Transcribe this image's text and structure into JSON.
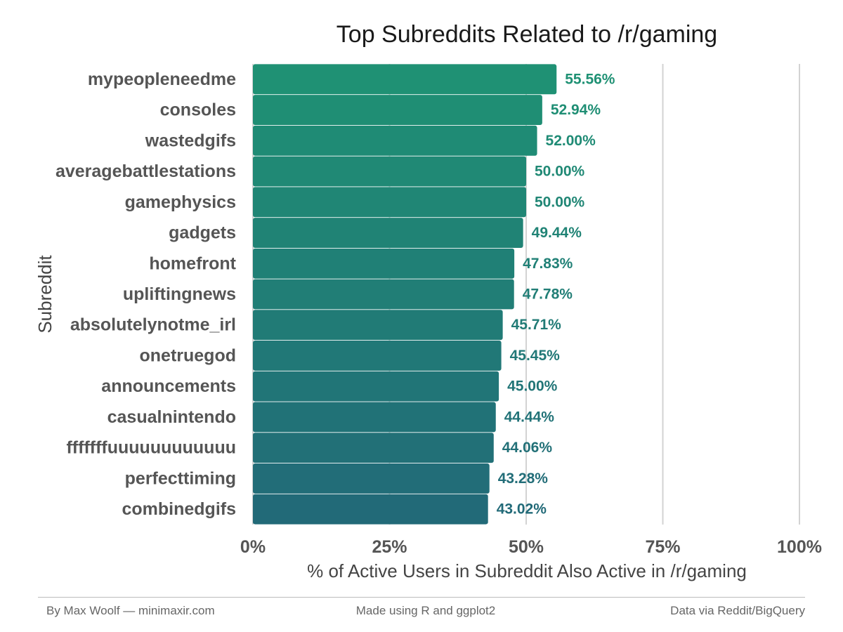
{
  "chart_data": {
    "type": "bar",
    "orientation": "horizontal",
    "title": "Top Subreddits Related to /r/gaming",
    "xlabel": "% of Active Users in Subreddit Also Active in /r/gaming",
    "ylabel": "Subreddit",
    "xlim": [
      0,
      100
    ],
    "x_ticks": [
      "0%",
      "25%",
      "50%",
      "75%",
      "100%"
    ],
    "x_tick_values": [
      0,
      25,
      50,
      75,
      100
    ],
    "grid": "vertical",
    "categories": [
      "mypeopleneedme",
      "consoles",
      "wastedgifs",
      "averagebattlestations",
      "gamephysics",
      "gadgets",
      "homefront",
      "upliftingnews",
      "absolutelynotme_irl",
      "onetruegod",
      "announcements",
      "casualnintendo",
      "fffffffuuuuuuuuuuuu",
      "perfecttiming",
      "combinedgifs"
    ],
    "values": [
      55.56,
      52.94,
      52.0,
      50.0,
      50.0,
      49.44,
      47.83,
      47.78,
      45.71,
      45.45,
      45.0,
      44.44,
      44.06,
      43.28,
      43.02
    ],
    "value_labels": [
      "55.56%",
      "52.94%",
      "52.00%",
      "50.00%",
      "50.00%",
      "49.44%",
      "47.83%",
      "47.78%",
      "45.71%",
      "45.45%",
      "45.00%",
      "44.44%",
      "44.06%",
      "43.28%",
      "43.02%"
    ],
    "colors": {
      "bar_top": "#1f9174",
      "bar_bottom": "#226a78",
      "grid": "#d3d3d3"
    }
  },
  "footer": {
    "left": "By Max Woolf — minimaxir.com",
    "center": "Made using R and ggplot2",
    "right": "Data via Reddit/BigQuery"
  }
}
